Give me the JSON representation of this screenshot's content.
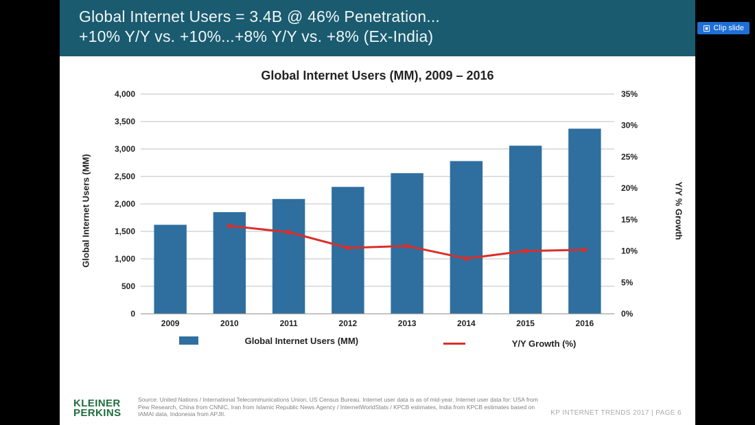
{
  "clip_button": {
    "label": "Clip slide"
  },
  "title": {
    "line1": "Global Internet Users = 3.4B @ 46% Penetration...",
    "line2": "+10% Y/Y vs. +10%...+8% Y/Y vs. +8% (Ex-India)"
  },
  "chart": {
    "type": "bar+line",
    "title": "Global Internet Users (MM), 2009 – 2016",
    "categories": [
      "2009",
      "2010",
      "2011",
      "2012",
      "2013",
      "2014",
      "2015",
      "2016"
    ],
    "bars": {
      "label": "Global Internet Users (MM)",
      "values": [
        1620,
        1850,
        2090,
        2310,
        2560,
        2780,
        3060,
        3370
      ],
      "color": "#2f6f9f"
    },
    "line": {
      "label": "Y/Y Growth (%)",
      "values": [
        null,
        14.0,
        13.0,
        10.5,
        10.8,
        8.8,
        10.0,
        10.2
      ],
      "color": "#d92f2b"
    },
    "y_left": {
      "label": "Global Internet Users (MM)",
      "min": 0,
      "max": 4000,
      "step": 500,
      "ticks": [
        "0",
        "500",
        "1,000",
        "1,500",
        "2,000",
        "2,500",
        "3,000",
        "3,500",
        "4,000"
      ]
    },
    "y_right": {
      "label": "Y/Y % Growth",
      "min": 0,
      "max": 35,
      "step": 5,
      "ticks": [
        "0%",
        "5%",
        "10%",
        "15%",
        "20%",
        "25%",
        "30%",
        "35%"
      ]
    },
    "grid_color": "#bfbfbf",
    "axis_color": "#888888",
    "background": "#ffffff",
    "bar_width_ratio": 0.55,
    "label_fontsize": 13,
    "tick_fontsize": 12,
    "title_fontsize": 18
  },
  "legend": {
    "bar_label": "Global Internet Users (MM)",
    "line_label": "Y/Y Growth (%)"
  },
  "logo": {
    "line1": "KLEINER",
    "line2": "PERKINS",
    "color": "#1e6d3e"
  },
  "source": "Source: United Nations / International Telecommunications Union, US Census Bureau. Internet user data is as of mid-year. Internet user data for: USA from Pew Research, China from CNNIC, Iran from Islamic Republic News Agency / InternetWorldStats / KPCB estimates, India from KPCB estimates based on IAMAI data, Indonesia from APJII.",
  "page_info": "KP INTERNET TRENDS 2017   |   PAGE 6"
}
